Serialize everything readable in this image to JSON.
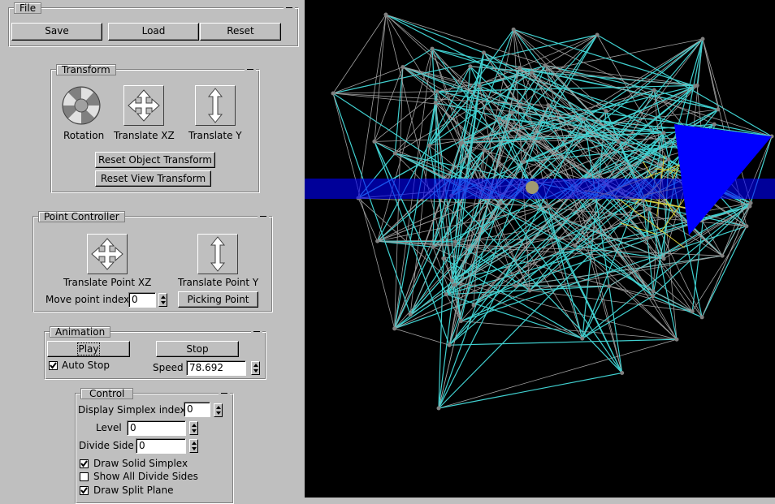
{
  "file_panel": {
    "title": "File",
    "buttons": [
      "Save",
      "Load",
      "Reset"
    ]
  },
  "transform_panel": {
    "title": "Transform",
    "controls": [
      "Rotation",
      "Translate XZ",
      "Translate Y"
    ],
    "buttons": [
      "Reset Object Transform",
      "Reset View Transform"
    ]
  },
  "point_panel": {
    "title": "Point Controller",
    "controls": [
      "Translate Point XZ",
      "Translate Point Y"
    ],
    "index_label": "Move point index",
    "index_value": "0",
    "button": "Picking Point"
  },
  "animation_panel": {
    "title": "Animation",
    "buttons": [
      "Play",
      "Stop"
    ],
    "checkbox": {
      "label": "Auto Stop",
      "checked": true
    },
    "speed_label": "Speed",
    "speed_value": "78.692"
  },
  "control_panel": {
    "title": "Control",
    "fields": [
      {
        "label": "Display Simplex index",
        "value": "0"
      },
      {
        "label": "Level",
        "value": "0"
      },
      {
        "label": "Divide Side",
        "value": "0"
      }
    ],
    "checkboxes": [
      {
        "label": "Draw Solid Simplex",
        "checked": true
      },
      {
        "label": "Show All Divide Sides",
        "checked": false
      },
      {
        "label": "Draw Split Plane",
        "checked": true
      }
    ]
  }
}
